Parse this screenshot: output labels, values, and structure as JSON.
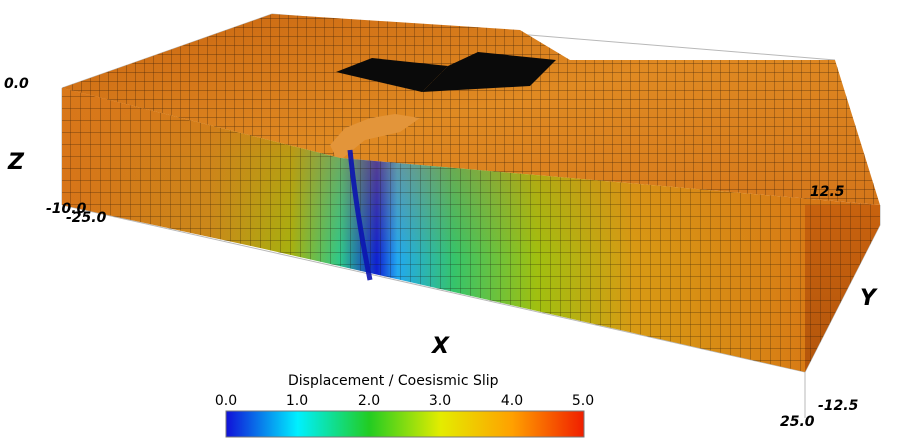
{
  "axes": {
    "z_label": "Z",
    "x_label": "X",
    "y_label": "Y",
    "z_top": "0.0",
    "z_bottom": "-10.0",
    "x_left": "-25.0",
    "x_right": "25.0",
    "y_top": "12.5",
    "y_bottom": "-12.5"
  },
  "colorbar": {
    "title": "Displacement / Coesismic Slip",
    "ticks": [
      "0.0",
      "1.0",
      "2.0",
      "3.0",
      "4.0",
      "5.0"
    ],
    "range": [
      0.0,
      5.0
    ],
    "colors": [
      "#1010d8",
      "#00f0ff",
      "#22cc22",
      "#e4ec00",
      "#ffa000",
      "#f01e00"
    ]
  },
  "colors": {
    "surface_orange": "#d9781a",
    "fault_core": "#1218c8",
    "openings": "#0a0a0a"
  }
}
